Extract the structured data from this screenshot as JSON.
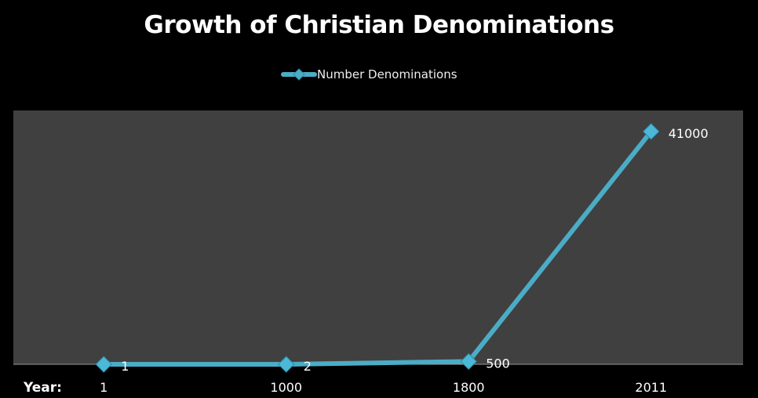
{
  "chart_data": {
    "type": "line",
    "title": "Growth of Christian Denominations",
    "xlabel": "Year:",
    "ylabel": "",
    "categories": [
      "1",
      "1000",
      "1800",
      "2011"
    ],
    "series": [
      {
        "name": "Number Denominations",
        "values": [
          1,
          2,
          500,
          41000
        ],
        "data_labels": [
          "1",
          "2",
          "500",
          "41000"
        ],
        "color": "#4bacc6"
      }
    ],
    "ylim": [
      0,
      44700
    ],
    "grid": false,
    "legend": "top-center",
    "plot_background": "#404040"
  }
}
